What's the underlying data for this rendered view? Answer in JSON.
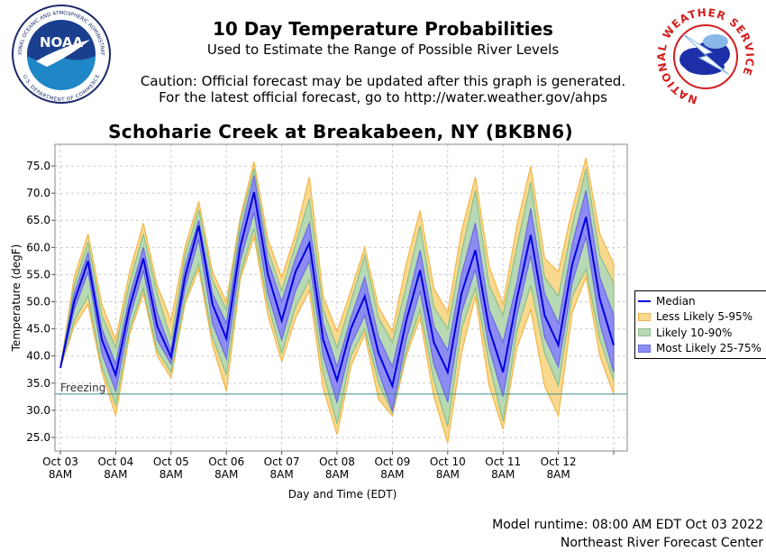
{
  "header": {
    "title": "10 Day Temperature Probabilities",
    "subtitle": "Used to Estimate the Range of Possible River Levels",
    "caution_line1": "Caution: Official forecast may be updated after this graph is generated.",
    "caution_line2": "For the latest official forecast, go to http://water.weather.gov/ahps"
  },
  "logos": {
    "noaa": {
      "text": "NOAA",
      "ring_text": "NATIONAL OCEANIC AND ATMOSPHERIC ADMINISTRATION",
      "ring_text_bottom": "U.S. DEPARTMENT OF COMMERCE"
    },
    "nws": {
      "ring_text": "NATIONAL WEATHER SERVICE"
    }
  },
  "footer": {
    "runtime": "Model runtime: 08:00 AM EDT Oct 03 2022",
    "center": "Northeast River Forecast Center"
  },
  "colors": {
    "median": "#0000dd",
    "band_5_95": "#f9d98e",
    "band_10_90": "#b7d9b4",
    "band_25_75": "#8c8cf2",
    "freezing_line": "#3d8c8c",
    "grid": "#cccccc"
  },
  "chart_data": {
    "type": "area",
    "title": "Schoharie Creek at Breakabeen, NY (BKBN6)",
    "xlabel": "Day and Time (EDT)",
    "ylabel": "Temperature (degF)",
    "ylim": [
      22.5,
      79
    ],
    "yticks": [
      "25.0",
      "30.0",
      "35.0",
      "40.0",
      "45.0",
      "50.0",
      "55.0",
      "60.0",
      "65.0",
      "70.0",
      "75.0"
    ],
    "xticks": [
      {
        "day": "Oct 03",
        "time": "8AM"
      },
      {
        "day": "Oct 04",
        "time": "8AM"
      },
      {
        "day": "Oct 05",
        "time": "8AM"
      },
      {
        "day": "Oct 06",
        "time": "8AM"
      },
      {
        "day": "Oct 07",
        "time": "8AM"
      },
      {
        "day": "Oct 08",
        "time": "8AM"
      },
      {
        "day": "Oct 09",
        "time": "8AM"
      },
      {
        "day": "Oct 10",
        "time": "8AM"
      },
      {
        "day": "Oct 11",
        "time": "8AM"
      },
      {
        "day": "Oct 12",
        "time": "8AM"
      }
    ],
    "x_step_hours": 6,
    "x_start": "Oct 03 8AM",
    "freezing": {
      "value": 33,
      "label": "Freezing"
    },
    "legend_position": "right",
    "series": [
      {
        "name": "Median",
        "values": [
          37.8,
          50.0,
          57.5,
          43.0,
          36.5,
          49.0,
          58.0,
          45.5,
          39.8,
          54.5,
          64.0,
          49.5,
          43.2,
          60.0,
          70.2,
          55.0,
          46.5,
          55.5,
          60.8,
          43.0,
          35.5,
          45.0,
          51.0,
          40.5,
          34.5,
          46.5,
          55.8,
          42.5,
          37.0,
          51.5,
          59.5,
          45.0,
          37.0,
          50.5,
          62.3,
          47.5,
          42.0,
          56.8,
          65.6,
          50.5,
          42.0
        ]
      },
      {
        "name": "Most Likely 25-75%",
        "low": [
          37.8,
          48.5,
          55.5,
          40.5,
          33.5,
          47.0,
          55.8,
          43.0,
          38.5,
          52.5,
          61.5,
          46.0,
          39.5,
          57.5,
          66.5,
          51.5,
          43.0,
          52.0,
          57.5,
          40.0,
          31.5,
          42.0,
          47.5,
          37.0,
          30.0,
          43.0,
          52.0,
          38.5,
          31.5,
          48.0,
          56.0,
          41.5,
          32.5,
          47.5,
          58.5,
          43.5,
          38.0,
          53.5,
          62.0,
          46.0,
          37.0
        ],
        "high": [
          37.8,
          51.5,
          59.0,
          45.0,
          38.5,
          51.0,
          60.0,
          48.0,
          41.0,
          56.5,
          65.0,
          51.5,
          46.0,
          62.5,
          73.2,
          57.5,
          50.0,
          58.0,
          64.5,
          46.0,
          38.0,
          47.0,
          54.5,
          43.5,
          38.0,
          49.0,
          59.5,
          45.5,
          41.0,
          55.0,
          64.5,
          48.5,
          42.5,
          53.5,
          67.2,
          51.5,
          46.0,
          60.5,
          70.5,
          54.5,
          47.5
        ]
      },
      {
        "name": "Likely 10-90%",
        "low": [
          37.8,
          46.5,
          51.0,
          38.0,
          31.0,
          45.0,
          52.5,
          41.0,
          37.0,
          50.5,
          57.0,
          43.5,
          36.5,
          55.0,
          63.5,
          49.5,
          40.5,
          49.0,
          54.0,
          37.0,
          27.5,
          40.0,
          45.0,
          35.0,
          29.5,
          41.0,
          48.5,
          35.5,
          27.0,
          45.0,
          52.5,
          38.5,
          28.0,
          44.5,
          53.0,
          40.5,
          34.5,
          51.0,
          56.0,
          43.0,
          35.5
        ],
        "high": [
          37.8,
          53.0,
          61.0,
          47.5,
          41.5,
          53.5,
          62.5,
          51.5,
          43.0,
          58.5,
          67.0,
          54.0,
          48.5,
          64.5,
          74.5,
          59.5,
          52.0,
          60.5,
          69.0,
          48.5,
          41.5,
          50.0,
          58.5,
          47.0,
          42.5,
          53.0,
          64.0,
          49.0,
          45.0,
          59.0,
          70.5,
          53.0,
          47.5,
          60.0,
          72.0,
          54.5,
          51.0,
          64.0,
          74.5,
          58.5,
          53.5
        ]
      },
      {
        "name": "Less Likely 5-95%",
        "low": [
          37.8,
          45.5,
          49.5,
          37.0,
          29.0,
          44.0,
          51.5,
          40.0,
          36.0,
          49.5,
          56.0,
          42.0,
          33.5,
          54.0,
          62.0,
          47.5,
          39.0,
          47.0,
          52.0,
          34.0,
          25.5,
          38.0,
          44.0,
          32.0,
          29.0,
          40.0,
          47.0,
          32.5,
          24.0,
          40.5,
          51.0,
          34.5,
          26.5,
          41.5,
          48.5,
          34.5,
          29.0,
          48.0,
          54.5,
          40.0,
          33.0
        ],
        "high": [
          37.8,
          54.5,
          62.5,
          49.5,
          43.0,
          55.5,
          64.5,
          53.0,
          46.5,
          60.0,
          68.5,
          55.5,
          50.0,
          65.5,
          75.8,
          61.5,
          54.5,
          62.5,
          73.0,
          51.0,
          44.5,
          52.0,
          60.0,
          49.0,
          44.5,
          57.0,
          66.8,
          52.5,
          48.0,
          63.0,
          73.0,
          56.5,
          49.5,
          64.0,
          75.0,
          58.0,
          55.5,
          67.0,
          76.5,
          62.5,
          57.0
        ]
      }
    ]
  }
}
